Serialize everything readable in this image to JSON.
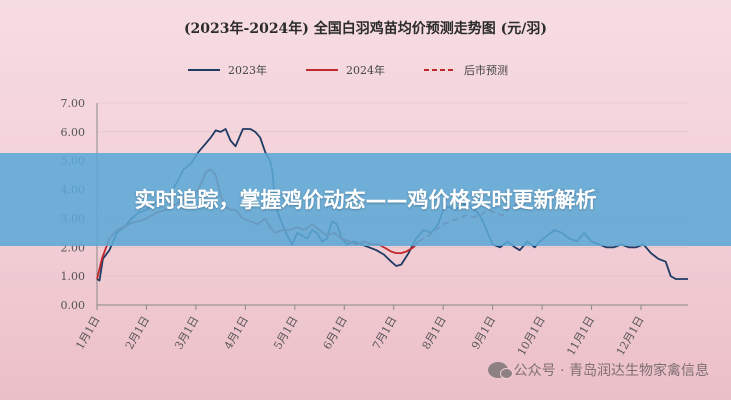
{
  "chart_data": {
    "type": "line",
    "title": "(2023年-2024年) 全国白羽鸡苗均价预测走势图 (元/羽)",
    "yticks": [
      "7.00",
      "6.00",
      "5.00",
      "4.00",
      "3.00",
      "2.00",
      "1.00",
      "0.00"
    ],
    "ylim": [
      0,
      7
    ],
    "xticks": [
      "1月1日",
      "2月1日",
      "3月1日",
      "4月1日",
      "5月1日",
      "6月1日",
      "7月1日",
      "8月1日",
      "9月1日",
      "10月1日",
      "11月1日",
      "12月1日"
    ],
    "xlim": [
      1,
      12.95
    ],
    "legend_position": "top",
    "series": [
      {
        "name": "2023年",
        "color": "#1f3a64",
        "style": "solid",
        "points": [
          [
            1.0,
            0.9
          ],
          [
            1.05,
            0.85
          ],
          [
            1.12,
            1.6
          ],
          [
            1.25,
            1.9
          ],
          [
            1.4,
            2.5
          ],
          [
            1.55,
            2.7
          ],
          [
            1.7,
            3.0
          ],
          [
            1.85,
            3.2
          ],
          [
            2.0,
            3.3
          ],
          [
            2.15,
            3.5
          ],
          [
            2.3,
            3.7
          ],
          [
            2.45,
            3.8
          ],
          [
            2.6,
            4.2
          ],
          [
            2.75,
            4.7
          ],
          [
            2.9,
            4.9
          ],
          [
            3.05,
            5.3
          ],
          [
            3.2,
            5.6
          ],
          [
            3.3,
            5.8
          ],
          [
            3.4,
            6.05
          ],
          [
            3.5,
            6.0
          ],
          [
            3.6,
            6.1
          ],
          [
            3.7,
            5.7
          ],
          [
            3.8,
            5.5
          ],
          [
            3.95,
            6.1
          ],
          [
            4.1,
            6.1
          ],
          [
            4.2,
            6.0
          ],
          [
            4.3,
            5.8
          ],
          [
            4.4,
            5.3
          ],
          [
            4.5,
            5.0
          ],
          [
            4.55,
            4.6
          ],
          [
            4.6,
            3.5
          ],
          [
            4.7,
            3.0
          ],
          [
            4.8,
            2.6
          ],
          [
            4.88,
            2.3
          ],
          [
            4.95,
            2.1
          ],
          [
            5.05,
            2.5
          ],
          [
            5.15,
            2.4
          ],
          [
            5.25,
            2.3
          ],
          [
            5.35,
            2.6
          ],
          [
            5.45,
            2.5
          ],
          [
            5.55,
            2.2
          ],
          [
            5.65,
            2.3
          ],
          [
            5.75,
            2.9
          ],
          [
            5.85,
            2.8
          ],
          [
            5.95,
            2.3
          ],
          [
            6.05,
            2.1
          ],
          [
            6.2,
            2.2
          ],
          [
            6.35,
            2.1
          ],
          [
            6.5,
            2.0
          ],
          [
            6.65,
            1.9
          ],
          [
            6.8,
            1.75
          ],
          [
            6.95,
            1.5
          ],
          [
            7.05,
            1.35
          ],
          [
            7.15,
            1.4
          ],
          [
            7.3,
            1.8
          ],
          [
            7.45,
            2.3
          ],
          [
            7.6,
            2.6
          ],
          [
            7.75,
            2.5
          ],
          [
            7.9,
            2.8
          ],
          [
            8.0,
            3.3
          ],
          [
            8.1,
            3.4
          ],
          [
            8.25,
            3.3
          ],
          [
            8.4,
            3.5
          ],
          [
            8.55,
            3.4
          ],
          [
            8.7,
            3.2
          ],
          [
            8.8,
            2.9
          ],
          [
            8.9,
            2.5
          ],
          [
            9.0,
            2.1
          ],
          [
            9.15,
            2.0
          ],
          [
            9.3,
            2.2
          ],
          [
            9.45,
            2.0
          ],
          [
            9.55,
            1.9
          ],
          [
            9.7,
            2.2
          ],
          [
            9.85,
            2.0
          ],
          [
            9.95,
            2.2
          ],
          [
            10.1,
            2.4
          ],
          [
            10.25,
            2.6
          ],
          [
            10.4,
            2.5
          ],
          [
            10.55,
            2.3
          ],
          [
            10.7,
            2.2
          ],
          [
            10.85,
            2.5
          ],
          [
            11.0,
            2.2
          ],
          [
            11.15,
            2.1
          ],
          [
            11.3,
            2.0
          ],
          [
            11.45,
            2.0
          ],
          [
            11.6,
            2.1
          ],
          [
            11.75,
            2.0
          ],
          [
            11.9,
            2.0
          ],
          [
            12.05,
            2.1
          ],
          [
            12.2,
            1.8
          ],
          [
            12.35,
            1.6
          ],
          [
            12.5,
            1.5
          ],
          [
            12.6,
            1.0
          ],
          [
            12.7,
            0.9
          ],
          [
            12.85,
            0.9
          ],
          [
            12.95,
            0.9
          ]
        ]
      },
      {
        "name": "2024年",
        "color": "#c0282b",
        "style": "solid",
        "points": [
          [
            1.0,
            0.9
          ],
          [
            1.1,
            1.6
          ],
          [
            1.25,
            2.3
          ],
          [
            1.4,
            2.6
          ],
          [
            1.55,
            2.7
          ],
          [
            1.7,
            2.85
          ],
          [
            1.85,
            2.9
          ],
          [
            2.0,
            3.0
          ],
          [
            2.2,
            3.2
          ],
          [
            2.4,
            3.3
          ],
          [
            2.6,
            3.5
          ],
          [
            2.8,
            3.7
          ],
          [
            2.95,
            3.8
          ],
          [
            3.05,
            4.0
          ],
          [
            3.2,
            4.6
          ],
          [
            3.3,
            4.7
          ],
          [
            3.4,
            4.5
          ],
          [
            3.5,
            3.8
          ],
          [
            3.6,
            3.4
          ],
          [
            3.7,
            3.3
          ],
          [
            3.8,
            3.3
          ],
          [
            3.95,
            3.0
          ],
          [
            4.1,
            2.9
          ],
          [
            4.25,
            2.8
          ],
          [
            4.4,
            3.0
          ],
          [
            4.5,
            2.7
          ],
          [
            4.6,
            2.5
          ],
          [
            4.75,
            2.6
          ],
          [
            4.9,
            2.6
          ],
          [
            5.05,
            2.7
          ],
          [
            5.2,
            2.6
          ],
          [
            5.35,
            2.8
          ],
          [
            5.5,
            2.6
          ],
          [
            5.65,
            2.4
          ],
          [
            5.8,
            2.5
          ],
          [
            5.95,
            2.3
          ],
          [
            6.1,
            2.2
          ],
          [
            6.25,
            2.1
          ],
          [
            6.4,
            2.2
          ],
          [
            6.55,
            2.1
          ],
          [
            6.7,
            2.1
          ],
          [
            6.85,
            1.95
          ],
          [
            6.95,
            1.85
          ],
          [
            7.05,
            1.8
          ],
          [
            7.15,
            1.8
          ],
          [
            7.25,
            1.85
          ],
          [
            7.4,
            2.0
          ],
          [
            7.5,
            2.2
          ]
        ]
      },
      {
        "name": "后市预测",
        "color": "#c0282b",
        "style": "dashed",
        "points": [
          [
            7.5,
            2.2
          ],
          [
            7.7,
            2.4
          ],
          [
            7.85,
            2.6
          ],
          [
            8.0,
            2.8
          ],
          [
            8.15,
            2.9
          ],
          [
            8.3,
            3.0
          ],
          [
            8.45,
            3.1
          ],
          [
            8.6,
            3.05
          ],
          [
            8.75,
            3.1
          ],
          [
            8.9,
            3.3
          ],
          [
            9.05,
            3.2
          ],
          [
            9.2,
            3.1
          ],
          [
            9.35,
            3.4
          ],
          [
            9.5,
            3.5
          ],
          [
            9.65,
            3.6
          ],
          [
            9.8,
            3.7
          ],
          [
            9.95,
            3.8
          ],
          [
            10.1,
            3.7
          ],
          [
            10.25,
            3.8
          ],
          [
            10.4,
            4.0
          ],
          [
            10.55,
            3.9
          ],
          [
            10.7,
            3.8
          ],
          [
            10.85,
            3.9
          ],
          [
            11.0,
            4.0
          ],
          [
            11.15,
            3.9
          ]
        ]
      }
    ]
  },
  "banner": {
    "headline": "实时追踪，掌握鸡价动态——鸡价格实时更新解析"
  },
  "watermark": {
    "text": "公众号 · 青岛润达生物家禽信息",
    "icon": "wechat-icon"
  }
}
